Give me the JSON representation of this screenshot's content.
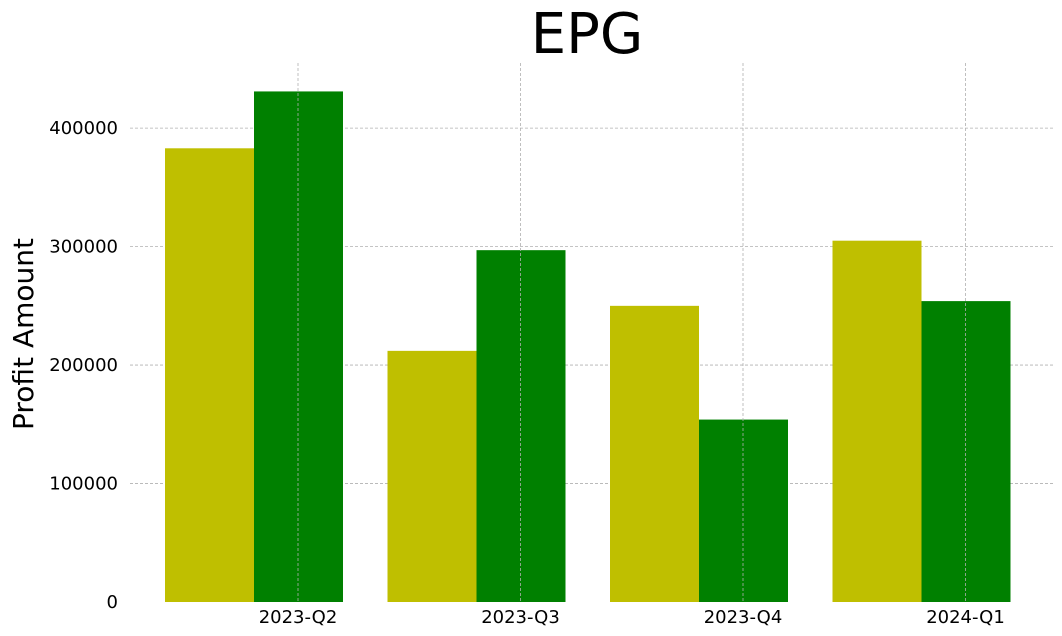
{
  "chart_data": {
    "type": "bar",
    "title": "EPG",
    "xlabel": "",
    "ylabel": "Profit Amount",
    "categories": [
      "2023-Q2",
      "2023-Q3",
      "2023-Q4",
      "2024-Q1"
    ],
    "series": [
      {
        "values": [
          383000,
          212000,
          250000,
          305000
        ],
        "color": "#bfbf00"
      },
      {
        "values": [
          431000,
          297000,
          154000,
          254000
        ],
        "color": "#008000"
      }
    ],
    "yticks": [
      0,
      100000,
      200000,
      300000,
      400000
    ],
    "ylim": [
      0,
      455000
    ],
    "grid": true,
    "legend": "none"
  }
}
